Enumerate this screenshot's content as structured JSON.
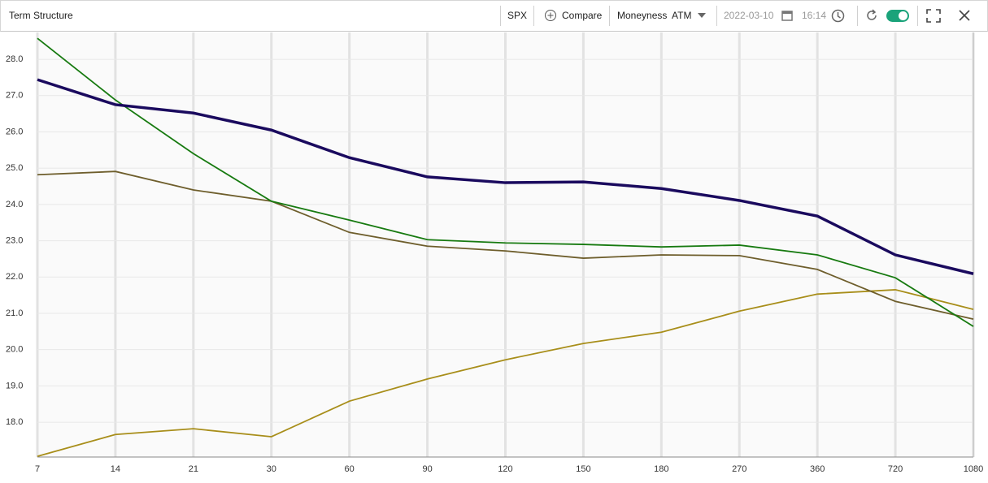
{
  "toolbar": {
    "title": "Term Structure",
    "symbol": "SPX",
    "compare": "Compare",
    "moneyness_label": "Moneyness",
    "moneyness_value": "ATM",
    "date": "2022-03-10",
    "time": "16:14"
  },
  "chart_data": {
    "type": "line",
    "categories": [
      "7",
      "14",
      "21",
      "30",
      "60",
      "90",
      "120",
      "150",
      "180",
      "270",
      "360",
      "720",
      "1080"
    ],
    "ylim": [
      17.04,
      28.74
    ],
    "yticks": [
      {
        "value": 18,
        "label": "18.0"
      },
      {
        "value": 19,
        "label": "19.0"
      },
      {
        "value": 20,
        "label": "20.0"
      },
      {
        "value": 21,
        "label": "21.0"
      },
      {
        "value": 22,
        "label": "22.0"
      },
      {
        "value": 23,
        "label": "23.0"
      },
      {
        "value": 24,
        "label": "24.0"
      },
      {
        "value": 25,
        "label": "25.0"
      },
      {
        "value": 26,
        "label": "26.0"
      },
      {
        "value": 27,
        "label": "27.0"
      },
      {
        "value": 28,
        "label": "28.0"
      }
    ],
    "grid": true,
    "series": [
      {
        "color": "#1a0a5e",
        "values": [
          27.44,
          26.75,
          26.52,
          26.05,
          25.29,
          24.76,
          24.6,
          24.62,
          24.44,
          24.11,
          23.68,
          22.61,
          22.09
        ]
      },
      {
        "color": "#177a10",
        "values": [
          28.58,
          26.88,
          25.4,
          24.09,
          23.57,
          23.03,
          22.94,
          22.9,
          22.83,
          22.88,
          22.61,
          21.98,
          20.64
        ]
      },
      {
        "color": "#6e5e2c",
        "values": [
          24.82,
          24.91,
          24.4,
          24.09,
          23.23,
          22.85,
          22.72,
          22.52,
          22.61,
          22.59,
          22.21,
          21.33,
          20.84
        ]
      },
      {
        "color": "#a88e1a",
        "values": [
          17.06,
          17.66,
          17.82,
          17.6,
          18.58,
          19.19,
          19.72,
          20.17,
          20.48,
          21.06,
          21.53,
          21.65,
          21.11
        ]
      }
    ]
  }
}
